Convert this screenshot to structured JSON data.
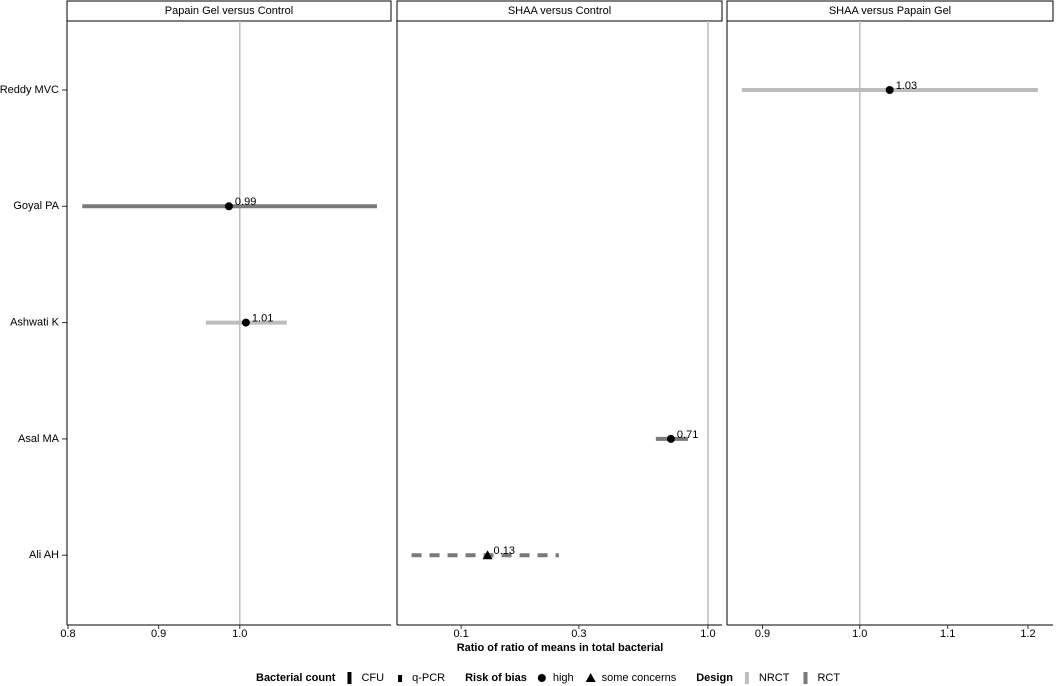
{
  "chart_data": [
    {
      "type": "forest",
      "title": "Papain Gel versus Control",
      "log_x": true,
      "reference": 1,
      "values": [
        null,
        0.986,
        1.008,
        null,
        null
      ],
      "lower": [
        null,
        0.815,
        0.957,
        null,
        null
      ],
      "upper": [
        null,
        1.195,
        1.063,
        null,
        null
      ],
      "value_labels": [
        null,
        "0.99",
        "1.01",
        null,
        null
      ],
      "design": [
        null,
        "RCT",
        "NRCT",
        null,
        null
      ],
      "risk_of_bias": [
        null,
        "high",
        "high",
        null,
        null
      ],
      "bacterial_count": [
        null,
        "CFU",
        "CFU",
        null,
        null
      ],
      "xlim": [
        0.799,
        1.217
      ],
      "xticks": [
        0.8,
        0.9,
        {
          "value": 1,
          "label": "1.0"
        }
      ]
    },
    {
      "type": "forest",
      "title": "SHAA versus Control",
      "log_x": true,
      "reference": 1,
      "values": [
        null,
        null,
        null,
        0.708,
        0.128
      ],
      "lower": [
        null,
        null,
        null,
        0.615,
        0.063
      ],
      "upper": [
        null,
        null,
        null,
        0.83,
        0.249
      ],
      "value_labels": [
        null,
        null,
        null,
        "0.71",
        "0.13"
      ],
      "design": [
        null,
        null,
        null,
        "RCT",
        "RCT"
      ],
      "risk_of_bias": [
        null,
        null,
        null,
        "high",
        "some concerns"
      ],
      "bacterial_count": [
        null,
        null,
        null,
        "CFU",
        "q-PCR"
      ],
      "xlim": [
        0.055,
        1.14
      ],
      "xticks": [
        0.1,
        0.3,
        {
          "value": 1,
          "label": "1.0"
        }
      ]
    },
    {
      "type": "forest",
      "title": "SHAA versus Papain Gel",
      "log_x": true,
      "reference": 1,
      "values": [
        1.033,
        null,
        null,
        null,
        null
      ],
      "lower": [
        0.88,
        null,
        null,
        null,
        null
      ],
      "upper": [
        1.213,
        null,
        null,
        null,
        null
      ],
      "value_labels": [
        "1.03",
        null,
        null,
        null,
        null
      ],
      "design": [
        "NRCT",
        null,
        null,
        null,
        null
      ],
      "risk_of_bias": [
        "high",
        null,
        null,
        null,
        null
      ],
      "bacterial_count": [
        "CFU",
        null,
        null,
        null,
        null
      ],
      "xlim": [
        0.866,
        1.233
      ],
      "xticks": [
        0.9,
        {
          "value": 1,
          "label": "1.0"
        },
        1.1,
        1.2
      ]
    }
  ],
  "categories": [
    "Reddy MVC",
    "Goyal PA",
    "Ashwati K",
    "Asal MA",
    "Ali AH"
  ],
  "x_label": "Ratio of ratio of means in total bacterial",
  "legend": [
    {
      "title": "Bacterial count",
      "items": [
        {
          "label": "CFU",
          "dash": "solid"
        },
        {
          "label": "q-PCR",
          "dash": "dashed"
        }
      ]
    },
    {
      "title": "Risk of bias",
      "items": [
        {
          "label": "high",
          "shape": "circle"
        },
        {
          "label": "some concerns",
          "shape": "triangle"
        }
      ]
    },
    {
      "title": "Design",
      "items": [
        {
          "label": "NRCT",
          "color": "#bdbdbd"
        },
        {
          "label": "RCT",
          "color": "#7a7a7a"
        }
      ]
    }
  ]
}
